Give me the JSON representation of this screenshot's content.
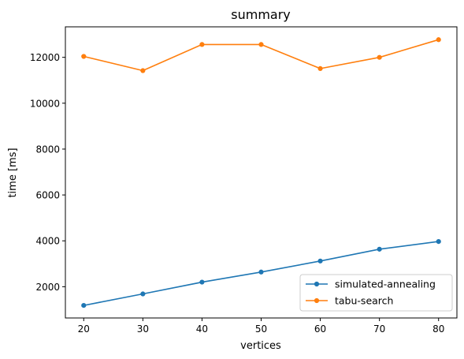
{
  "chart_data": {
    "type": "line",
    "title": "summary",
    "xlabel": "vertices",
    "ylabel": "time [ms]",
    "x": [
      20,
      30,
      40,
      50,
      60,
      70,
      80
    ],
    "xticks": [
      20,
      30,
      40,
      50,
      60,
      70,
      80
    ],
    "yticks": [
      2000,
      4000,
      6000,
      8000,
      10000,
      12000
    ],
    "xlim": [
      16.9,
      83.1
    ],
    "ylim": [
      637,
      13330
    ],
    "grid": false,
    "legend_position": "lower-right",
    "series": [
      {
        "name": "simulated-annealing",
        "color": "#1f77b4",
        "marker": "point",
        "values": [
          1185,
          1685,
          2200,
          2640,
          3120,
          3635,
          3970
        ]
      },
      {
        "name": "tabu-search",
        "color": "#ff7f0e",
        "marker": "point",
        "values": [
          12040,
          11420,
          12560,
          12560,
          11510,
          12000,
          12770
        ]
      }
    ]
  }
}
